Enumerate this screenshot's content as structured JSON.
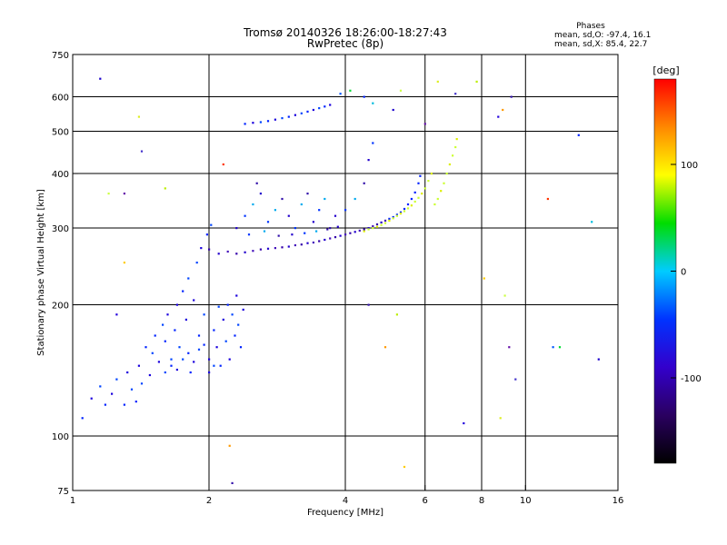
{
  "header": {
    "title": "Tromsø 20140326 18:26:00-18:27:43",
    "subtitle": "RwPretec (8p)",
    "stats_title": "Phases",
    "stats_line1": "mean, sd,O: -97.4, 16.1",
    "stats_line2": "mean, sd,X:  85.4, 22.7"
  },
  "chart_data": {
    "type": "scatter",
    "xlabel": "Frequency [MHz]",
    "ylabel": "Stationary phase Virtual Height [km]",
    "x_scale": "log",
    "y_scale": "log",
    "xlim": [
      1,
      16
    ],
    "ylim": [
      75,
      750
    ],
    "x_ticks": [
      1,
      2,
      4,
      6,
      8,
      10,
      16
    ],
    "y_ticks": [
      75,
      100,
      200,
      300,
      400,
      500,
      600,
      750
    ],
    "x_grid": [
      2,
      4,
      6,
      8,
      10
    ],
    "y_grid": [
      100,
      200,
      300,
      400,
      500,
      600
    ],
    "grid": true,
    "colorbar": {
      "label": "[deg]",
      "range": [
        -180,
        180
      ],
      "ticks": [
        -100,
        0,
        100
      ],
      "colors": [
        "#000000",
        "#2a0060",
        "#3300cc",
        "#0033ff",
        "#00ccff",
        "#00dd00",
        "#ffff00",
        "#ff8800",
        "#ff0000"
      ]
    },
    "series": [
      {
        "points": [
          [
            1.05,
            110
          ],
          [
            1.1,
            122
          ],
          [
            1.15,
            130
          ],
          [
            1.18,
            118
          ],
          [
            1.22,
            125
          ],
          [
            1.25,
            135
          ],
          [
            1.3,
            118
          ],
          [
            1.32,
            140
          ],
          [
            1.35,
            128
          ],
          [
            1.38,
            120
          ],
          [
            1.4,
            145
          ],
          [
            1.42,
            132
          ],
          [
            1.45,
            160
          ],
          [
            1.48,
            138
          ],
          [
            1.5,
            155
          ],
          [
            1.52,
            170
          ],
          [
            1.55,
            148
          ],
          [
            1.58,
            180
          ],
          [
            1.6,
            165
          ],
          [
            1.62,
            190
          ],
          [
            1.65,
            150
          ],
          [
            1.68,
            175
          ],
          [
            1.7,
            200
          ],
          [
            1.72,
            160
          ],
          [
            1.75,
            215
          ],
          [
            1.78,
            185
          ],
          [
            1.8,
            230
          ],
          [
            1.82,
            140
          ],
          [
            1.85,
            205
          ],
          [
            1.88,
            250
          ],
          [
            1.9,
            170
          ],
          [
            1.92,
            270
          ],
          [
            1.95,
            190
          ],
          [
            1.98,
            290
          ],
          [
            2.0,
            150
          ],
          [
            2.02,
            305
          ],
          [
            2.05,
            175
          ],
          [
            2.08,
            160
          ],
          [
            2.1,
            198
          ],
          [
            2.12,
            145
          ],
          [
            2.15,
            185
          ],
          [
            2.18,
            165
          ],
          [
            2.2,
            200
          ],
          [
            2.22,
            150
          ],
          [
            2.25,
            190
          ],
          [
            2.28,
            170
          ],
          [
            2.3,
            210
          ],
          [
            2.32,
            180
          ],
          [
            2.35,
            160
          ],
          [
            2.38,
            195
          ],
          [
            1.6,
            140
          ],
          [
            1.65,
            145
          ],
          [
            1.7,
            142
          ],
          [
            1.75,
            150
          ],
          [
            1.8,
            155
          ],
          [
            1.85,
            148
          ],
          [
            1.9,
            158
          ],
          [
            1.95,
            162
          ],
          [
            2.0,
            140
          ],
          [
            2.05,
            145
          ]
        ]
      },
      {
        "points": [
          [
            2.0,
            268
          ],
          [
            2.1,
            262
          ],
          [
            2.2,
            265
          ],
          [
            2.3,
            262
          ],
          [
            2.4,
            264
          ],
          [
            2.5,
            266
          ],
          [
            2.6,
            268
          ],
          [
            2.7,
            269
          ],
          [
            2.8,
            270
          ],
          [
            2.9,
            271
          ],
          [
            3.0,
            272
          ],
          [
            3.1,
            274
          ],
          [
            3.2,
            275
          ],
          [
            3.3,
            277
          ],
          [
            3.4,
            278
          ],
          [
            3.5,
            280
          ],
          [
            3.6,
            282
          ],
          [
            3.7,
            284
          ],
          [
            3.8,
            286
          ],
          [
            3.9,
            288
          ],
          [
            4.0,
            290
          ],
          [
            4.1,
            292
          ],
          [
            4.2,
            294
          ],
          [
            4.3,
            296
          ],
          [
            4.4,
            298
          ],
          [
            4.5,
            300
          ],
          [
            4.6,
            303
          ],
          [
            4.7,
            306
          ],
          [
            4.8,
            309
          ],
          [
            4.9,
            312
          ],
          [
            5.0,
            315
          ],
          [
            5.1,
            318
          ],
          [
            5.2,
            322
          ],
          [
            5.3,
            326
          ],
          [
            5.4,
            332
          ],
          [
            5.5,
            340
          ],
          [
            5.6,
            350
          ],
          [
            5.7,
            362
          ],
          [
            5.8,
            380
          ],
          [
            5.85,
            395
          ]
        ]
      },
      {
        "points": [
          [
            2.3,
            300
          ],
          [
            2.4,
            320
          ],
          [
            2.5,
            340
          ],
          [
            2.55,
            380
          ],
          [
            2.6,
            360
          ],
          [
            2.7,
            310
          ],
          [
            2.8,
            330
          ],
          [
            2.9,
            350
          ],
          [
            3.0,
            320
          ],
          [
            3.1,
            300
          ],
          [
            3.2,
            340
          ],
          [
            3.3,
            360
          ],
          [
            3.4,
            310
          ],
          [
            3.5,
            330
          ],
          [
            3.6,
            350
          ],
          [
            3.7,
            300
          ],
          [
            3.8,
            320
          ],
          [
            2.45,
            290
          ],
          [
            2.65,
            295
          ],
          [
            2.85,
            288
          ],
          [
            3.05,
            290
          ],
          [
            3.25,
            292
          ],
          [
            3.45,
            295
          ],
          [
            3.65,
            298
          ],
          [
            3.85,
            302
          ],
          [
            4.0,
            330
          ],
          [
            4.2,
            350
          ],
          [
            4.4,
            380
          ],
          [
            4.5,
            430
          ],
          [
            4.6,
            470
          ]
        ]
      },
      {
        "points": [
          [
            2.4,
            520
          ],
          [
            2.5,
            523
          ],
          [
            2.6,
            525
          ],
          [
            2.7,
            528
          ],
          [
            2.8,
            532
          ],
          [
            2.9,
            536
          ],
          [
            3.0,
            540
          ],
          [
            3.1,
            545
          ],
          [
            3.2,
            550
          ],
          [
            3.3,
            555
          ],
          [
            3.4,
            560
          ],
          [
            3.5,
            565
          ],
          [
            3.6,
            570
          ],
          [
            3.7,
            575
          ]
        ]
      },
      {
        "points": [
          [
            4.4,
            295
          ],
          [
            4.5,
            298
          ],
          [
            4.6,
            300
          ],
          [
            4.7,
            302
          ],
          [
            4.8,
            305
          ],
          [
            4.9,
            308
          ],
          [
            5.0,
            312
          ],
          [
            5.1,
            316
          ],
          [
            5.2,
            320
          ],
          [
            5.3,
            324
          ],
          [
            5.4,
            328
          ],
          [
            5.5,
            333
          ],
          [
            5.6,
            338
          ],
          [
            5.7,
            345
          ],
          [
            5.8,
            352
          ],
          [
            5.9,
            360
          ],
          [
            6.0,
            370
          ],
          [
            6.1,
            385
          ],
          [
            6.2,
            400
          ],
          [
            6.3,
            340
          ],
          [
            6.4,
            350
          ],
          [
            6.5,
            365
          ],
          [
            6.6,
            380
          ],
          [
            6.7,
            400
          ],
          [
            6.8,
            420
          ],
          [
            6.9,
            440
          ],
          [
            7.0,
            460
          ],
          [
            7.05,
            480
          ]
        ]
      },
      {
        "points": [
          [
            1.15,
            660
          ],
          [
            1.2,
            360
          ],
          [
            1.3,
            360
          ],
          [
            1.4,
            540
          ],
          [
            1.42,
            450
          ],
          [
            1.6,
            370
          ],
          [
            1.3,
            250
          ],
          [
            1.25,
            190
          ],
          [
            2.22,
            95
          ],
          [
            2.25,
            78
          ],
          [
            2.15,
            420
          ],
          [
            3.9,
            610
          ],
          [
            4.1,
            620
          ],
          [
            4.4,
            600
          ],
          [
            4.6,
            580
          ],
          [
            5.1,
            560
          ],
          [
            5.3,
            620
          ],
          [
            6.0,
            520
          ],
          [
            6.4,
            650
          ],
          [
            7.0,
            610
          ],
          [
            7.8,
            650
          ],
          [
            8.1,
            230
          ],
          [
            8.7,
            540
          ],
          [
            8.9,
            560
          ],
          [
            9.3,
            600
          ],
          [
            11.2,
            350
          ],
          [
            11.5,
            160
          ],
          [
            11.9,
            160
          ],
          [
            13.1,
            490
          ],
          [
            14.0,
            310
          ],
          [
            14.5,
            150
          ],
          [
            9.0,
            210
          ],
          [
            9.2,
            160
          ],
          [
            8.8,
            110
          ],
          [
            9.5,
            135
          ],
          [
            5.2,
            190
          ],
          [
            5.4,
            85
          ],
          [
            7.3,
            107
          ],
          [
            4.9,
            160
          ],
          [
            4.5,
            200
          ]
        ]
      }
    ]
  }
}
